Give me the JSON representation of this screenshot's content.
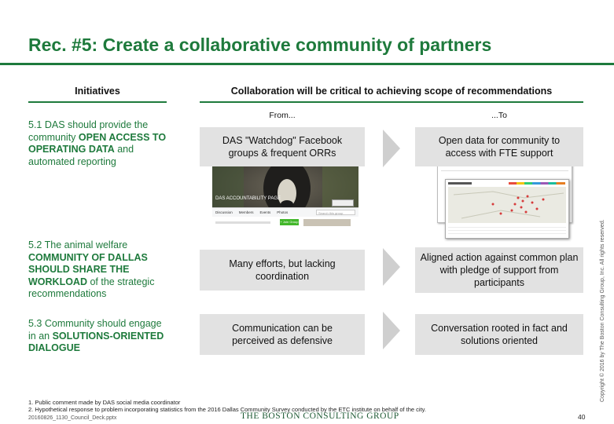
{
  "title": "Rec. #5: Create a collaborative community of partners",
  "left_header": "Initiatives",
  "right_header": "Collaboration will be critical to achieving scope of recommendations",
  "from_label": "From...",
  "to_label": "...To",
  "initiatives": [
    {
      "pre": "5.1 DAS should provide the community ",
      "bold": "OPEN ACCESS TO OPERATING DATA",
      "post": " and automated reporting"
    },
    {
      "pre": "5.2 The animal welfare ",
      "bold": "COMMUNITY OF DALLAS SHOULD SHARE THE WORKLOAD",
      "post": " of the strategic recommendations"
    },
    {
      "pre": "5.3 Community should engage in  an ",
      "bold": "SOLUTIONS-ORIENTED DIALOGUE",
      "post": ""
    }
  ],
  "rows": [
    {
      "from": "DAS \"Watchdog\" Facebook groups & frequent ORRs",
      "to": "Open data for community to access with FTE support"
    },
    {
      "from": "Many efforts, but lacking coordination",
      "to": "Aligned action against common plan with pledge of support from participants"
    },
    {
      "from": "Communication can be perceived as defensive",
      "to": "Conversation rooted in fact and solutions oriented"
    }
  ],
  "facebook_mock": {
    "page_name": "DAS ACCOUNTABILITY PAGE",
    "tabs": [
      "Discussion",
      "Members",
      "Events",
      "Photos"
    ],
    "search_placeholder": "Search this group",
    "join_button": "+ Join Group"
  },
  "footnotes": [
    "1. Public comment made by DAS social media coordinator",
    "2. Hypothetical response to problem incorporating statistics from the 2016 Dallas Community Survey conducted by the ETC institute on behalf of the city."
  ],
  "file_name": "20160826_1130_Council_Deck.pptx",
  "brand": "THE BOSTON CONSULTING GROUP",
  "page_number": "40",
  "copyright": "Copyright © 2016 by The Boston Consulting Group, Inc. All rights reserved.",
  "colors": {
    "accent": "#1e7a3c",
    "box": "#e2e2e2",
    "chevron": "#cfcfcf"
  }
}
